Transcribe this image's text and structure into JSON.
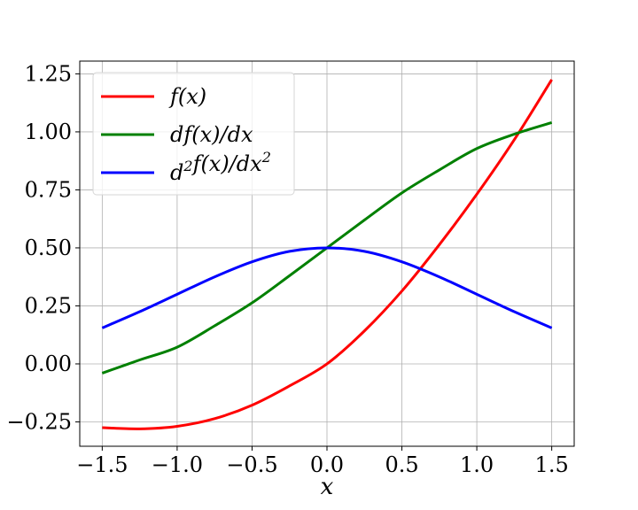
{
  "chart_data": {
    "type": "line",
    "title": "",
    "xlabel": "x",
    "ylabel": "",
    "xlim": [
      -1.65,
      1.65
    ],
    "ylim": [
      -0.355,
      1.305
    ],
    "grid": true,
    "legend_position": "top-left",
    "x_ticks": [
      -1.5,
      -1.0,
      -0.5,
      0.0,
      0.5,
      1.0,
      1.5
    ],
    "x_tick_labels": [
      "−1.5",
      "−1.0",
      "−0.5",
      "0.0",
      "0.5",
      "1.0",
      "1.5"
    ],
    "y_ticks": [
      -0.25,
      0.0,
      0.25,
      0.5,
      0.75,
      1.0,
      1.25
    ],
    "y_tick_labels": [
      "−0.25",
      "0.00",
      "0.25",
      "0.50",
      "0.75",
      "1.00",
      "1.25"
    ],
    "x": [
      -1.5,
      -1.25,
      -1.0,
      -0.75,
      -0.5,
      -0.25,
      0.0,
      0.25,
      0.5,
      0.75,
      1.0,
      1.25,
      1.5
    ],
    "series": [
      {
        "name": "f(x)",
        "legend_label": "f(x)",
        "color": "#ff0000",
        "values": [
          -0.275,
          -0.28,
          -0.269,
          -0.236,
          -0.178,
          -0.095,
          0.0,
          0.142,
          0.314,
          0.514,
          0.731,
          0.966,
          1.225
        ]
      },
      {
        "name": "df(x)/dx",
        "legend_label": "df(x)/dx",
        "color": "#008000",
        "values": [
          -0.04,
          0.017,
          0.072,
          0.164,
          0.263,
          0.38,
          0.5,
          0.62,
          0.737,
          0.836,
          0.928,
          0.99,
          1.04
        ]
      },
      {
        "name": "d^2f(x)/dx^2",
        "legend_label": "d2f(x)/dx2",
        "color": "#0000ff",
        "values": [
          0.155,
          0.225,
          0.3,
          0.375,
          0.44,
          0.485,
          0.5,
          0.485,
          0.44,
          0.375,
          0.3,
          0.225,
          0.155
        ]
      }
    ]
  }
}
